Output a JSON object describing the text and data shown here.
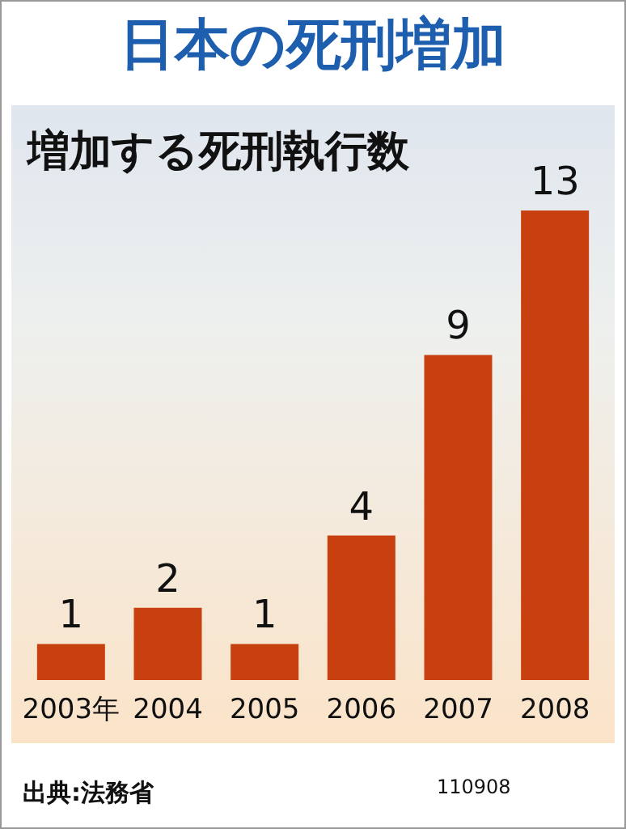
{
  "chart_data": {
    "type": "bar",
    "title": "日本の死刑増加",
    "subtitle": "増加する死刑執行数",
    "categories": [
      "2003年",
      "2004",
      "2005",
      "2006",
      "2007",
      "2008"
    ],
    "values": [
      1,
      2,
      1,
      4,
      9,
      13
    ],
    "color": "#c8400f",
    "data_labels": true,
    "annotations": [
      "出典:法務省",
      "110908"
    ]
  }
}
